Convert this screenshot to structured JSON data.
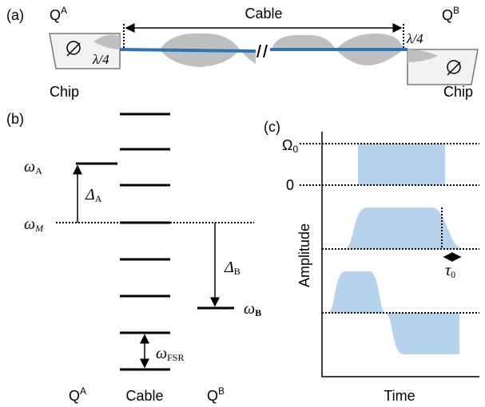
{
  "panel_a": {
    "label": "(a)",
    "qubit_a": {
      "base": "Q",
      "sup": "A"
    },
    "cable": "Cable",
    "qubit_b": {
      "base": "Q",
      "sup": "B"
    },
    "quarter_wave_left": "λ/4",
    "quarter_wave_right": "λ/4",
    "chip_left": "Chip",
    "chip_right": "Chip"
  },
  "panel_b": {
    "label": "(b)",
    "omega_a": {
      "base": "ω",
      "sub": "A"
    },
    "delta_a": {
      "base": "Δ",
      "sub": "A"
    },
    "omega_m": {
      "base": "ω",
      "sub": "M"
    },
    "delta_b": {
      "base": "Δ",
      "sub": "B"
    },
    "omega_b": {
      "base": "ω",
      "sub": "B"
    },
    "omega_fsr": {
      "base": "ω",
      "sub": "FSR"
    },
    "columns": [
      {
        "base": "Q",
        "sup": "A"
      },
      {
        "base": "Cable"
      },
      {
        "base": "Q",
        "sup": "B"
      }
    ]
  },
  "panel_c": {
    "label": "(c)",
    "omega0": {
      "base": "Ω",
      "sub": "0"
    },
    "zero": "0",
    "y_label": "Amplitude",
    "x_label": "Time",
    "tau0": {
      "base": "τ",
      "sub": "0"
    }
  }
}
